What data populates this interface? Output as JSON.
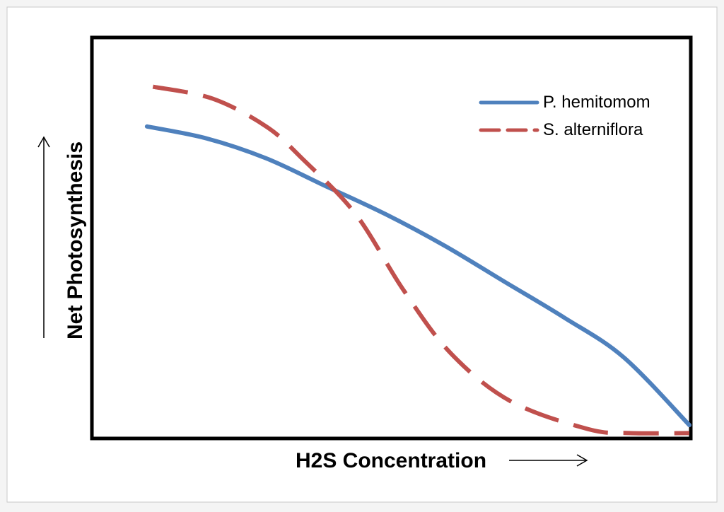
{
  "chart_data": {
    "type": "line",
    "title": "",
    "xlabel": "H2S Concentration",
    "ylabel": "Net Photosynthesis",
    "xlim": [
      0,
      1
    ],
    "ylim": [
      0,
      1
    ],
    "grid": false,
    "legend_position": "top-right",
    "series": [
      {
        "name": "P. hemitomom",
        "color": "#4f81bd",
        "style": "solid",
        "x": [
          0.09,
          0.19,
          0.29,
          0.39,
          0.49,
          0.59,
          0.69,
          0.79,
          0.89,
          1.0
        ],
        "y": [
          0.78,
          0.75,
          0.7,
          0.63,
          0.56,
          0.48,
          0.39,
          0.3,
          0.2,
          0.03
        ]
      },
      {
        "name": "S. alterniflora",
        "color": "#c0504d",
        "style": "dashed",
        "x": [
          0.1,
          0.2,
          0.29,
          0.35,
          0.44,
          0.52,
          0.6,
          0.7,
          0.83,
          0.9,
          1.0
        ],
        "y": [
          0.88,
          0.85,
          0.78,
          0.7,
          0.56,
          0.37,
          0.21,
          0.09,
          0.02,
          0.01,
          0.01
        ]
      }
    ]
  }
}
